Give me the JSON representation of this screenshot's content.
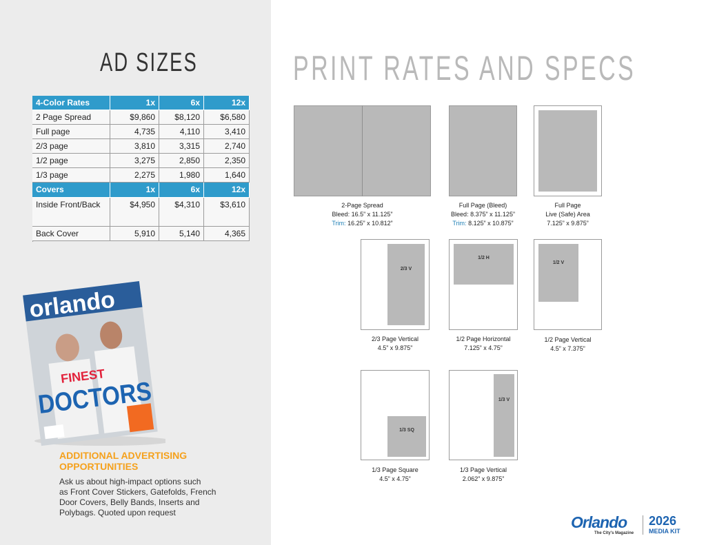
{
  "left": {
    "title": "AD SIZES"
  },
  "rates_table": {
    "header": [
      "4-Color Rates",
      "1x",
      "6x",
      "12x"
    ],
    "rows": [
      [
        "2 Page Spread",
        "$9,860",
        "$8,120",
        "$6,580"
      ],
      [
        "Full page",
        "4,735",
        "4,110",
        "3,410"
      ],
      [
        "2/3 page",
        "3,810",
        "3,315",
        "2,740"
      ],
      [
        "1/2 page",
        "3,275",
        "2,850",
        "2,350"
      ],
      [
        "1/3 page",
        "2,275",
        "1,980",
        "1,640"
      ]
    ],
    "covers_header": [
      "Covers",
      "1x",
      "6x",
      "12x"
    ],
    "cover_rows": [
      [
        "Inside Front/Back",
        "$4,950",
        "$4,310",
        "$3,610"
      ],
      [
        "Back Cover",
        "5,910",
        "5,140",
        "4,365"
      ]
    ]
  },
  "cover": {
    "brand": "orlando",
    "headline_1": "FINEST",
    "headline_2": "DOCTORS"
  },
  "additional": {
    "title_lines": [
      "ADDITIONAL ADVERTISING",
      "OPPORTUNITIES"
    ],
    "body_lines": [
      "Ask us about high-impact options such",
      "as Front Cover Stickers, Gatefolds, French",
      "Door Covers, Belly Bands, Inserts and",
      "Polybags. Quoted upon request"
    ]
  },
  "right": {
    "title": "PRINT RATES AND SPECS"
  },
  "specs": [
    {
      "lines": [
        "2-Page Spread",
        "Bleed: 16.5” x 11.125”"
      ],
      "trim_label": "Trim:",
      "trim_value": "16.25” x 10.812”"
    },
    {
      "lines": [
        "Full Page (Bleed)",
        "Bleed: 8.375” x 11.125”"
      ],
      "trim_label": "Trim:",
      "trim_value": "8.125” x 10.875”"
    },
    {
      "lines": [
        "Full Page",
        "Live (Safe) Area",
        "7.125” x 9.875”"
      ]
    },
    {
      "box_label": "2/3 V",
      "lines": [
        "2/3 Page Vertical",
        "4.5” x 9.875”"
      ]
    },
    {
      "box_label": "1/2 H",
      "lines": [
        "1/2 Page Horizontal",
        "7.125” x 4.75”"
      ]
    },
    {
      "box_label": "1/2 V",
      "lines": [
        "1/2 Page Vertical",
        "4.5” x 7.375”"
      ]
    },
    {
      "box_label": "1/3 SQ",
      "lines": [
        "1/3 Page Square",
        "4.5” x 4.75”"
      ]
    },
    {
      "box_label": "1/3 V",
      "lines": [
        "1/3 Page Vertical",
        "2.062” x 9.875”"
      ]
    }
  ],
  "footer": {
    "brand": "Orlando",
    "tagline": "The City's Magazine",
    "year": "2026",
    "kit": "MEDIA KIT"
  }
}
